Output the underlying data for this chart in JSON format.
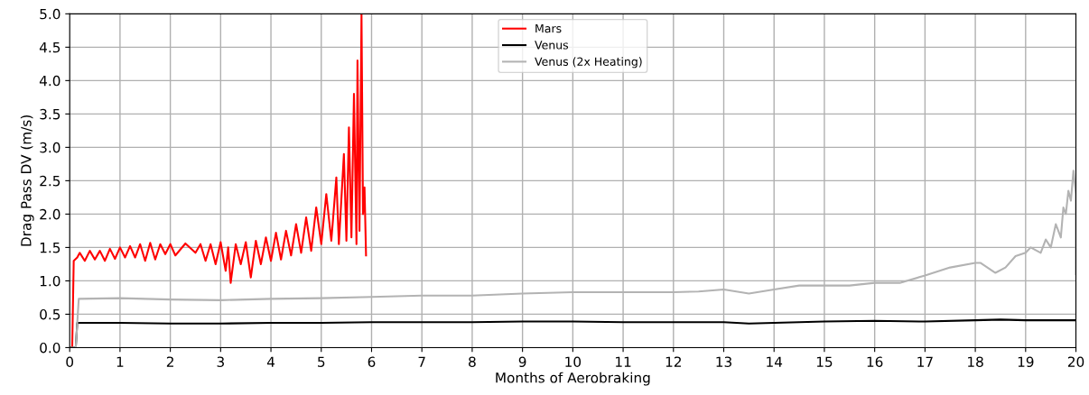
{
  "chart_data": {
    "type": "line",
    "xlabel": "Months of Aerobraking",
    "ylabel": "Drag Pass DV (m/s)",
    "xlim": [
      0,
      20
    ],
    "ylim": [
      0,
      5
    ],
    "xticks": [
      0,
      1,
      2,
      3,
      4,
      5,
      6,
      7,
      8,
      9,
      10,
      11,
      12,
      13,
      14,
      15,
      16,
      17,
      18,
      19,
      20
    ],
    "yticks": [
      {
        "value": 0,
        "label": "0.0"
      },
      {
        "value": 0.5,
        "label": "0.5"
      },
      {
        "value": 1,
        "label": "1.0"
      },
      {
        "value": 1.5,
        "label": "1.5"
      },
      {
        "value": 2,
        "label": "2.0"
      },
      {
        "value": 2.5,
        "label": "2.5"
      },
      {
        "value": 3,
        "label": "3.0"
      },
      {
        "value": 3.5,
        "label": "3.5"
      },
      {
        "value": 4,
        "label": "4.0"
      },
      {
        "value": 4.5,
        "label": "4.5"
      },
      {
        "value": 5,
        "label": "5.0"
      }
    ],
    "grid": true,
    "legend": "top",
    "marker": "none",
    "line_style": "solid",
    "series": [
      {
        "name": "Mars",
        "color": "#ff0000",
        "x": [
          0,
          0.05,
          0.08,
          0.15,
          0.2,
          0.3,
          0.4,
          0.5,
          0.6,
          0.7,
          0.8,
          0.9,
          1.0,
          1.1,
          1.2,
          1.3,
          1.4,
          1.5,
          1.6,
          1.7,
          1.8,
          1.9,
          2.0,
          2.1,
          2.3,
          2.5,
          2.6,
          2.7,
          2.8,
          2.9,
          3.0,
          3.1,
          3.15,
          3.2,
          3.3,
          3.4,
          3.5,
          3.6,
          3.7,
          3.8,
          3.9,
          4.0,
          4.1,
          4.2,
          4.3,
          4.4,
          4.5,
          4.6,
          4.7,
          4.8,
          4.9,
          5.0,
          5.1,
          5.2,
          5.3,
          5.35,
          5.45,
          5.5,
          5.55,
          5.6,
          5.65,
          5.7,
          5.72,
          5.76,
          5.8,
          5.83,
          5.86,
          5.89
        ],
        "values": [
          0,
          0,
          1.3,
          1.35,
          1.42,
          1.3,
          1.45,
          1.32,
          1.45,
          1.3,
          1.48,
          1.33,
          1.5,
          1.35,
          1.52,
          1.35,
          1.55,
          1.3,
          1.57,
          1.32,
          1.55,
          1.4,
          1.55,
          1.38,
          1.56,
          1.42,
          1.55,
          1.3,
          1.55,
          1.25,
          1.58,
          1.15,
          1.5,
          0.97,
          1.55,
          1.25,
          1.58,
          1.05,
          1.6,
          1.25,
          1.65,
          1.3,
          1.72,
          1.32,
          1.75,
          1.38,
          1.85,
          1.42,
          1.95,
          1.45,
          2.1,
          1.55,
          2.3,
          1.6,
          2.55,
          1.55,
          2.9,
          1.6,
          3.3,
          1.65,
          3.8,
          1.55,
          4.3,
          1.75,
          5.0,
          2.0,
          2.4,
          1.38
        ]
      },
      {
        "name": "Venus",
        "color": "#000000",
        "x": [
          0,
          0.12,
          0.15,
          1,
          2,
          3,
          4,
          5,
          6,
          7,
          8,
          9,
          10,
          11,
          12,
          13,
          13.5,
          14,
          15,
          16,
          17,
          18,
          18.5,
          19,
          20
        ],
        "values": [
          0,
          0,
          0.37,
          0.37,
          0.36,
          0.36,
          0.37,
          0.37,
          0.38,
          0.38,
          0.38,
          0.39,
          0.39,
          0.38,
          0.38,
          0.38,
          0.36,
          0.37,
          0.39,
          0.4,
          0.39,
          0.41,
          0.42,
          0.41,
          0.41
        ]
      },
      {
        "name": "Venus (2x Heating)",
        "color": "#b3b3b3",
        "x": [
          0,
          0.12,
          0.18,
          1,
          2,
          3,
          4,
          5,
          6,
          7,
          8,
          9,
          10,
          11,
          12,
          12.5,
          13,
          13.5,
          14,
          14.5,
          15,
          15.5,
          16,
          16.5,
          17,
          17.5,
          18,
          18.1,
          18.4,
          18.6,
          18.8,
          19.0,
          19.1,
          19.3,
          19.4,
          19.5,
          19.6,
          19.7,
          19.75,
          19.8,
          19.85,
          19.9,
          19.95,
          20,
          20
        ],
        "values": [
          0,
          0,
          0.73,
          0.74,
          0.72,
          0.71,
          0.73,
          0.74,
          0.76,
          0.78,
          0.78,
          0.81,
          0.83,
          0.83,
          0.83,
          0.84,
          0.87,
          0.81,
          0.87,
          0.93,
          0.93,
          0.93,
          0.97,
          0.97,
          1.08,
          1.2,
          1.27,
          1.27,
          1.12,
          1.2,
          1.37,
          1.42,
          1.5,
          1.42,
          1.62,
          1.5,
          1.85,
          1.65,
          2.1,
          2.0,
          2.35,
          2.2,
          2.65,
          2.3,
          1.1
        ]
      }
    ]
  }
}
